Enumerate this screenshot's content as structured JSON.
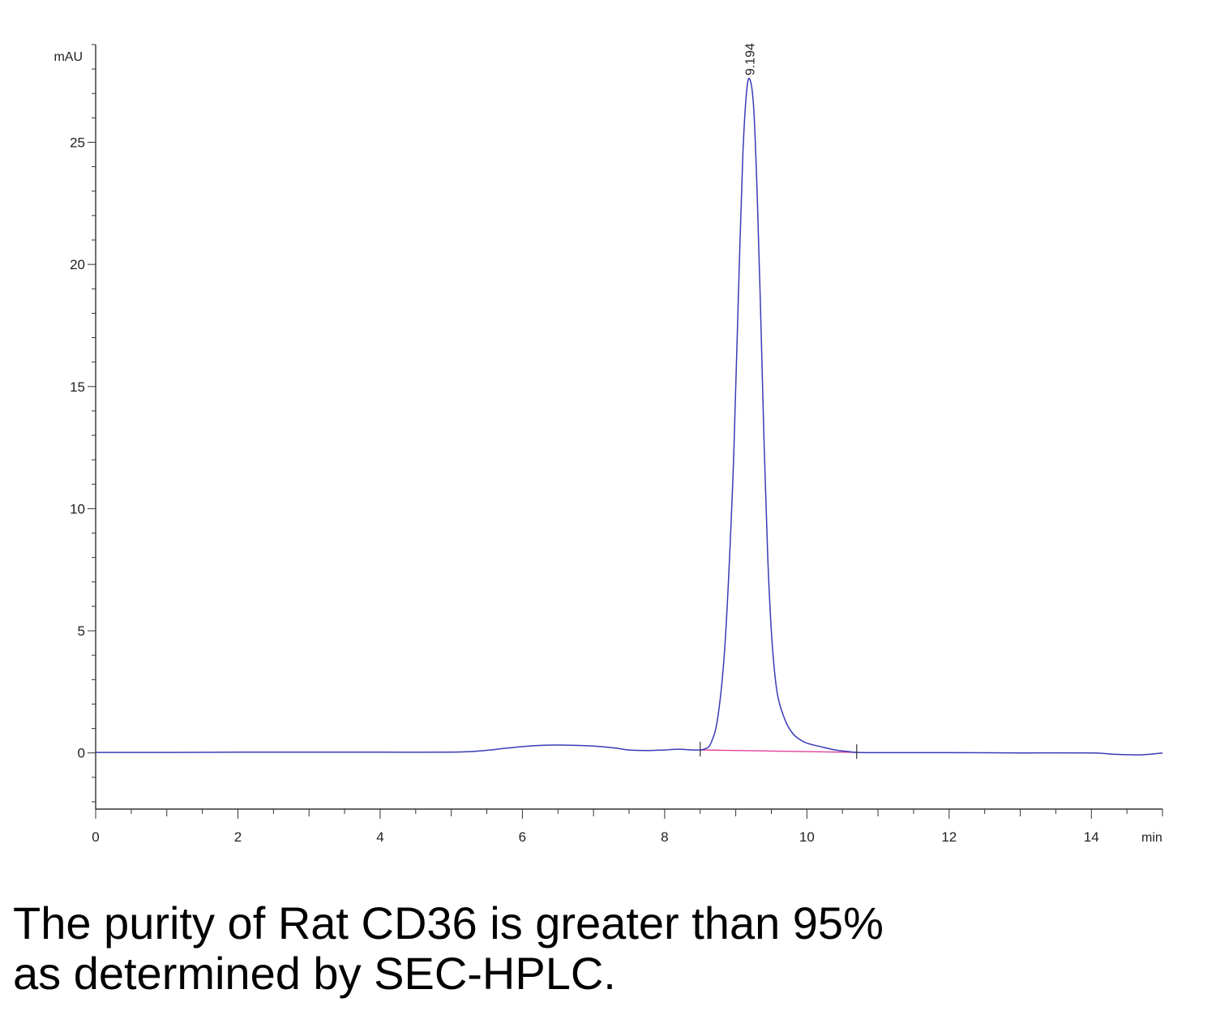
{
  "chart_data": {
    "type": "line",
    "title": "",
    "xlabel": "min",
    "ylabel": "mAU",
    "xlim": [
      0,
      15
    ],
    "ylim": [
      -2.3,
      29
    ],
    "x_ticks": [
      0,
      2,
      4,
      6,
      8,
      10,
      12,
      14
    ],
    "y_ticks": [
      0,
      5,
      10,
      15,
      20,
      25
    ],
    "grid": false,
    "legend": "none",
    "line_color": "#3a3ab8",
    "baseline_color": "#e0409a",
    "series": [
      {
        "x": [
          0,
          1,
          2,
          3,
          4,
          5,
          5.4,
          5.8,
          6.2,
          6.6,
          7.0,
          7.3,
          7.5,
          7.8,
          8.0,
          8.2,
          8.4,
          8.55,
          8.65,
          8.75,
          8.85,
          8.95,
          9.0,
          9.05,
          9.1,
          9.15,
          9.194,
          9.25,
          9.3,
          9.35,
          9.4,
          9.45,
          9.5,
          9.55,
          9.6,
          9.7,
          9.8,
          9.9,
          10.0,
          10.2,
          10.4,
          10.6,
          10.7,
          11,
          12,
          13,
          14,
          14.3,
          14.7,
          15
        ],
        "y": [
          0.02,
          0.02,
          0.03,
          0.03,
          0.03,
          0.03,
          0.08,
          0.2,
          0.3,
          0.32,
          0.28,
          0.2,
          0.12,
          0.1,
          0.12,
          0.15,
          0.12,
          0.15,
          0.4,
          1.5,
          4.5,
          10.5,
          15,
          20,
          24.5,
          27,
          27.6,
          26.5,
          23,
          18,
          12.5,
          8,
          5,
          3.2,
          2.2,
          1.3,
          0.8,
          0.55,
          0.4,
          0.25,
          0.12,
          0.05,
          0.02,
          0.01,
          0.01,
          0.0,
          0.0,
          -0.05,
          -0.08,
          0.0
        ]
      }
    ],
    "peak_annotations": [
      {
        "x": 9.194,
        "y": 27.6,
        "label": "9.194"
      }
    ],
    "integration_baseline": {
      "x_start": 8.5,
      "x_end": 10.7,
      "y_start": 0.12,
      "y_end": 0.02
    }
  },
  "caption": {
    "line1": "The purity of Rat CD36 is greater than 95%",
    "line2": "as determined by SEC-HPLC."
  }
}
